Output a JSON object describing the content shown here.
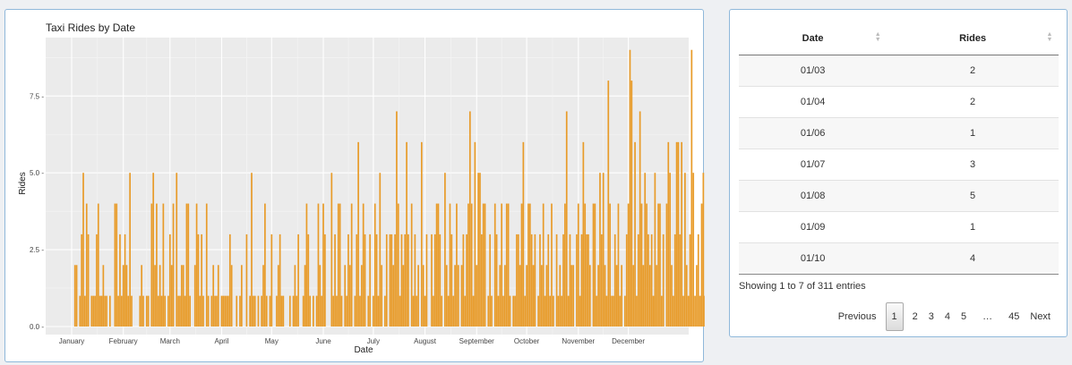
{
  "chart_data": {
    "type": "bar",
    "title": "Taxi Rides by Date",
    "xlabel": "Date",
    "ylabel": "Rides",
    "ylim": [
      0,
      9.4
    ],
    "yticks": [
      0,
      2.5,
      5,
      7.5
    ],
    "ytick_labels": [
      "0.0 -",
      "2.5 -",
      "5.0 -",
      "7.5 -"
    ],
    "xticks": [
      "January",
      "February",
      "March",
      "April",
      "May",
      "June",
      "July",
      "August",
      "September",
      "October",
      "November",
      "December"
    ],
    "grid": true,
    "bar_color": "#e89b29",
    "panel_color": "#ebebeb",
    "day_start": 3,
    "values": [
      2,
      2,
      0,
      1,
      3,
      5,
      1,
      4,
      3,
      0,
      1,
      1,
      1,
      3,
      4,
      1,
      1,
      2,
      1,
      1,
      0,
      1,
      0,
      0,
      4,
      4,
      1,
      3,
      1,
      2,
      3,
      2,
      1,
      5,
      1,
      0,
      0,
      0,
      0,
      1,
      2,
      1,
      0,
      1,
      1,
      0,
      4,
      5,
      2,
      4,
      1,
      2,
      1,
      4,
      1,
      0,
      1,
      3,
      2,
      4,
      0,
      5,
      1,
      1,
      2,
      2,
      1,
      4,
      4,
      1,
      0,
      0,
      2,
      4,
      3,
      1,
      3,
      1,
      0,
      4,
      1,
      0,
      1,
      2,
      1,
      1,
      2,
      0,
      1,
      1,
      1,
      1,
      1,
      3,
      2,
      0,
      0,
      1,
      0,
      1,
      2,
      0,
      0,
      3,
      0,
      1,
      5,
      1,
      1,
      0,
      1,
      0,
      1,
      2,
      4,
      1,
      0,
      1,
      3,
      0,
      0,
      1,
      2,
      3,
      1,
      1,
      0,
      0,
      0,
      1,
      0,
      1,
      2,
      1,
      3,
      0,
      0,
      1,
      2,
      4,
      3,
      1,
      0,
      1,
      0,
      1,
      4,
      2,
      1,
      4,
      3,
      0,
      0,
      0,
      5,
      1,
      3,
      1,
      4,
      4,
      1,
      0,
      2,
      1,
      3,
      2,
      4,
      0,
      1,
      3,
      6,
      1,
      2,
      4,
      3,
      0,
      1,
      3,
      0,
      1,
      4,
      3,
      1,
      5,
      2,
      0,
      1,
      3,
      0,
      3,
      3,
      2,
      3,
      7,
      4,
      1,
      3,
      2,
      3,
      6,
      3,
      0,
      4,
      1,
      3,
      1,
      2,
      0,
      6,
      2,
      1,
      3,
      0,
      0,
      3,
      1,
      3,
      4,
      4,
      3,
      1,
      0,
      5,
      2,
      1,
      4,
      3,
      1,
      2,
      4,
      2,
      0,
      2,
      3,
      1,
      3,
      4,
      7,
      4,
      1,
      6,
      2,
      5,
      5,
      3,
      4,
      4,
      0,
      1,
      3,
      1,
      0,
      4,
      3,
      1,
      2,
      4,
      1,
      2,
      4,
      4,
      1,
      0,
      1,
      1,
      3,
      3,
      2,
      4,
      6,
      1,
      2,
      4,
      4,
      3,
      2,
      3,
      0,
      1,
      3,
      2,
      4,
      1,
      2,
      3,
      1,
      4,
      1,
      0,
      3,
      1,
      2,
      1,
      3,
      4,
      7,
      1,
      3,
      2,
      2,
      0,
      3,
      4,
      1,
      3,
      6,
      4,
      3,
      3,
      2,
      0,
      4,
      4,
      1,
      2,
      5,
      3,
      5,
      2,
      1,
      8,
      4,
      1,
      1,
      3,
      2,
      4,
      1,
      2,
      0,
      1,
      3,
      4,
      9,
      8,
      2,
      6,
      1,
      3,
      7,
      4,
      2,
      5,
      4,
      3,
      2,
      3,
      1,
      5,
      2,
      4,
      4,
      1,
      3,
      0,
      4,
      6,
      5,
      2,
      1,
      3,
      6,
      6,
      3,
      6,
      1,
      5,
      2,
      1,
      3,
      9,
      5,
      1,
      2,
      3,
      1,
      4,
      5,
      1,
      1,
      3,
      2,
      1,
      7,
      2,
      1,
      1,
      0,
      2,
      1,
      2,
      2
    ]
  },
  "table": {
    "columns": [
      "Date",
      "Rides"
    ],
    "rows": [
      {
        "date": "01/03",
        "rides": "2"
      },
      {
        "date": "01/04",
        "rides": "2"
      },
      {
        "date": "01/06",
        "rides": "1"
      },
      {
        "date": "01/07",
        "rides": "3"
      },
      {
        "date": "01/08",
        "rides": "5"
      },
      {
        "date": "01/09",
        "rides": "1"
      },
      {
        "date": "01/10",
        "rides": "4"
      }
    ],
    "info": "Showing 1 to 7 of 311 entries",
    "pagination": {
      "previous": "Previous",
      "pages": [
        "1",
        "2",
        "3",
        "4",
        "5"
      ],
      "ellipsis": "…",
      "last": "45",
      "next": "Next"
    }
  }
}
